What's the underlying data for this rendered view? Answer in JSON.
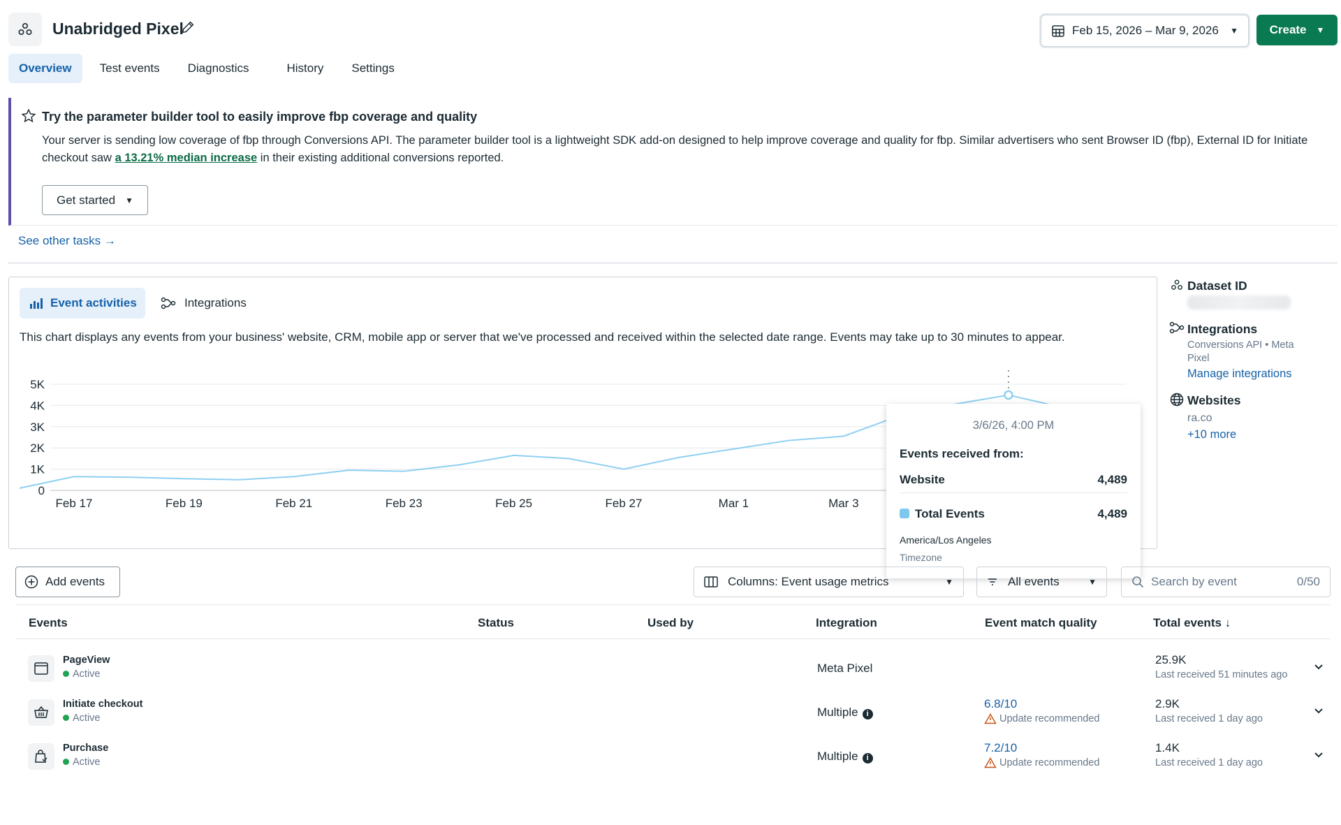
{
  "header": {
    "title": "Unabridged Pixel",
    "date_range": "Feb 15, 2026 – Mar 9, 2026",
    "create_label": "Create"
  },
  "tabs": [
    {
      "label": "Overview",
      "active": true
    },
    {
      "label": "Test events"
    },
    {
      "label": "Diagnostics"
    },
    {
      "label": "History"
    },
    {
      "label": "Settings"
    }
  ],
  "banner": {
    "title": "Try the parameter builder tool to easily improve fbp coverage and quality",
    "body_pre": "Your server is sending low coverage of fbp through Conversions API. The parameter builder tool is a lightweight SDK add-on designed to help improve coverage and quality for fbp. Similar advertisers who sent Browser ID (fbp), External ID for Initiate checkout saw ",
    "body_link": "a 13.21% median increase",
    "body_post": " in their existing additional conversions reported.",
    "button_label": "Get started",
    "see_other_tasks": "See other tasks"
  },
  "chart_panel": {
    "tab_event": "Event activities",
    "tab_integrations": "Integrations",
    "description": "This chart displays any events from your business' website, CRM, mobile app or server that we've processed and received within the selected date range. Events may take up to 30 minutes to appear."
  },
  "chart_data": {
    "type": "line",
    "x": [
      "Feb 16",
      "Feb 17",
      "Feb 18",
      "Feb 19",
      "Feb 20",
      "Feb 21",
      "Feb 22",
      "Feb 23",
      "Feb 24",
      "Feb 25",
      "Feb 26",
      "Feb 27",
      "Feb 28",
      "Mar 1",
      "Mar 2",
      "Mar 3",
      "Mar 4",
      "Mar 5",
      "Mar 6",
      "Mar 7"
    ],
    "y_ticks": [
      "0",
      "1K",
      "2K",
      "3K",
      "4K",
      "5K"
    ],
    "x_tick_labels": [
      "Feb 17",
      "Feb 19",
      "Feb 21",
      "Feb 23",
      "Feb 25",
      "Feb 27",
      "Mar 1",
      "Mar 3"
    ],
    "series": [
      {
        "values": [
          100,
          650,
          620,
          550,
          500,
          650,
          950,
          900,
          1200,
          1650,
          1500,
          1000,
          1550,
          1950,
          2350,
          2550,
          3500,
          4050,
          4489,
          3900
        ]
      }
    ],
    "ylim": [
      0,
      5000
    ],
    "grid": true,
    "color": "#8fd0f2"
  },
  "tooltip": {
    "time": "3/6/26, 4:00 PM",
    "heading": "Events received from:",
    "rows": [
      {
        "label": "Website",
        "value": "4,489"
      },
      {
        "label": "Total Events",
        "value": "4,489"
      }
    ],
    "timezone": "America/Los Angeles",
    "timezone_label": "Timezone"
  },
  "side": {
    "dataset_title": "Dataset ID",
    "integrations_title": "Integrations",
    "integrations_sub": "Conversions API • Meta Pixel",
    "manage_link": "Manage integrations",
    "websites_title": "Websites",
    "website": "ra.co",
    "more_link": "+10 more"
  },
  "toolbar": {
    "add_events": "Add events",
    "columns": "Columns: Event usage metrics",
    "filter": "All events",
    "search_placeholder": "Search by event",
    "search_count": "0/50"
  },
  "table": {
    "headers": [
      "Events",
      "Status",
      "Used by",
      "Integration",
      "Event match quality",
      "Total events"
    ],
    "rows": [
      {
        "name": "PageView",
        "status": "Active",
        "integration": "Meta Pixel",
        "emq": "",
        "emq_note": "",
        "total": "25.9K",
        "last": "Last received 51 minutes ago"
      },
      {
        "name": "Initiate checkout",
        "status": "Active",
        "integration": "Multiple",
        "emq": "6.8/10",
        "emq_note": "Update recommended",
        "total": "2.9K",
        "last": "Last received 1 day ago"
      },
      {
        "name": "Purchase",
        "status": "Active",
        "integration": "Multiple",
        "emq": "7.2/10",
        "emq_note": "Update recommended",
        "total": "1.4K",
        "last": "Last received 1 day ago"
      }
    ]
  }
}
